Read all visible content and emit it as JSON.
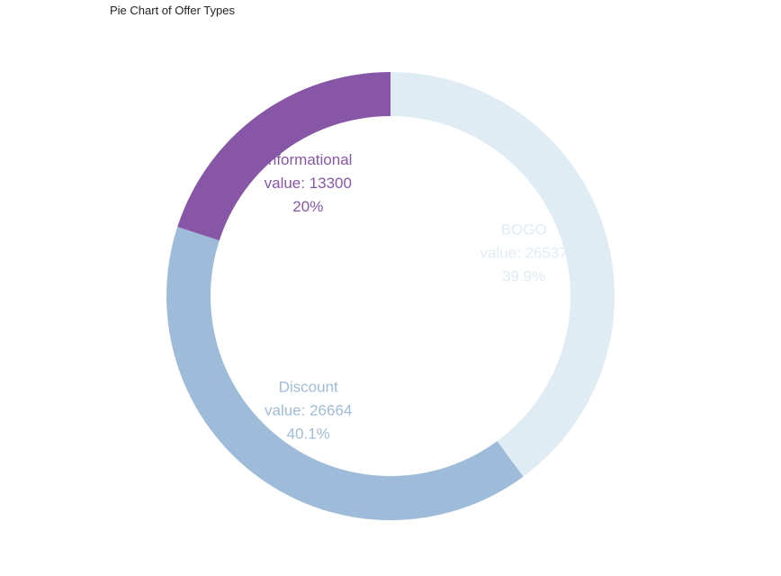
{
  "chart_data": {
    "type": "pie",
    "title": "Pie Chart of Offer Types",
    "hole": true,
    "slices": [
      {
        "label": "BOGO",
        "value": 26537,
        "percent_label": "39.9%",
        "value_label": "value: 26537",
        "color": "#e0ecf4"
      },
      {
        "label": "Discount",
        "value": 26664,
        "percent_label": "40.1%",
        "value_label": "value: 26664",
        "color": "#9ebcda"
      },
      {
        "label": "Informational",
        "value": 13300,
        "percent_label": "20%",
        "value_label": "value: 13300",
        "color": "#8856a7"
      }
    ]
  }
}
